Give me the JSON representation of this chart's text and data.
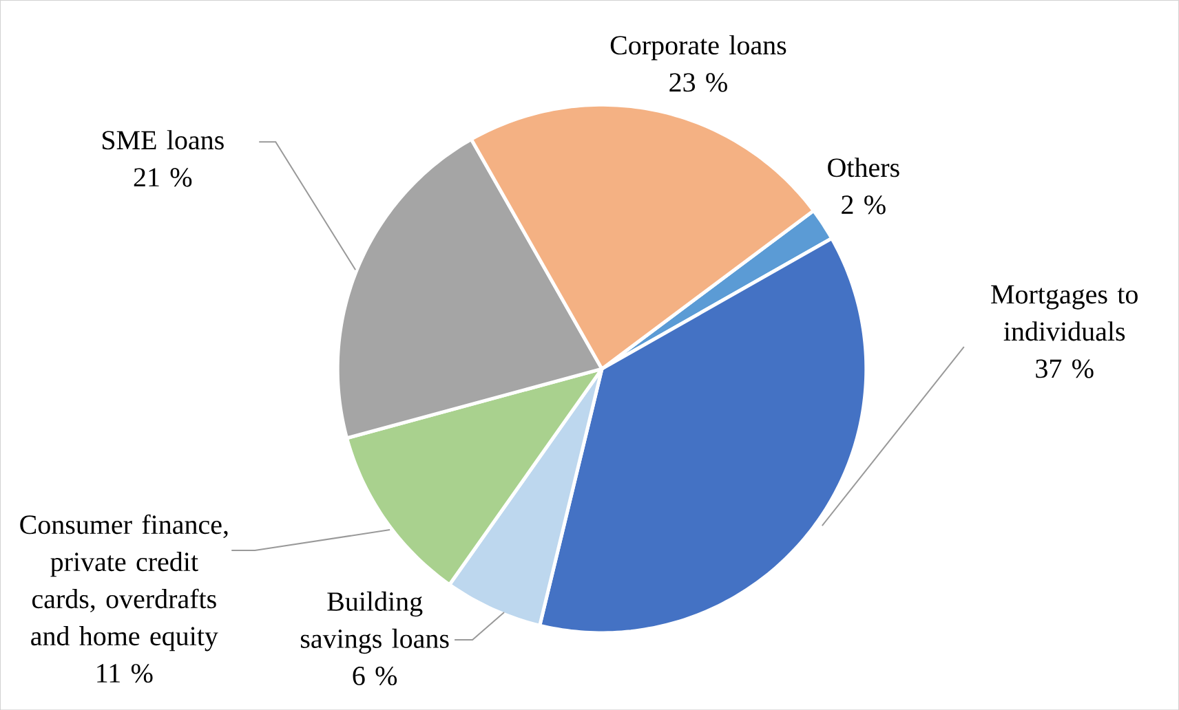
{
  "chart_data": {
    "type": "pie",
    "categories": [
      "Others",
      "Mortgages to individuals",
      "Building savings loans",
      "Consumer finance, private credit cards, overdrafts and home equity",
      "SME loans",
      "Corporate loans"
    ],
    "values": [
      2,
      37,
      6,
      11,
      21,
      23
    ],
    "value_labels": [
      "2 %",
      "37 %",
      "6 %",
      "11 %",
      "21 %",
      "23 %"
    ],
    "colors": [
      "#5b9bd5",
      "#4472c4",
      "#bdd7ee",
      "#a9d18e",
      "#a5a5a5",
      "#f4b183"
    ]
  }
}
